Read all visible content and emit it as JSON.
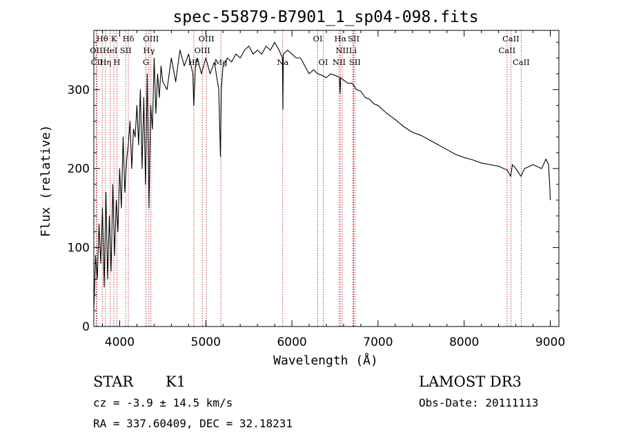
{
  "chart_data": {
    "type": "line",
    "title": "spec-55879-B7901_1_sp04-098.fits",
    "xlabel": "Wavelength (Å)",
    "ylabel": "Flux (relative)",
    "xlim": [
      3700,
      9100
    ],
    "ylim": [
      0,
      375
    ],
    "xticks": [
      4000,
      5000,
      6000,
      7000,
      8000,
      9000
    ],
    "yticks": [
      0,
      100,
      200,
      300
    ],
    "series": [
      {
        "name": "flux",
        "x": [
          3700,
          3720,
          3740,
          3760,
          3780,
          3800,
          3820,
          3840,
          3860,
          3880,
          3900,
          3920,
          3940,
          3960,
          3980,
          4000,
          4020,
          4040,
          4060,
          4080,
          4100,
          4120,
          4140,
          4160,
          4180,
          4200,
          4220,
          4240,
          4260,
          4280,
          4300,
          4320,
          4340,
          4360,
          4380,
          4400,
          4420,
          4440,
          4460,
          4480,
          4500,
          4550,
          4600,
          4650,
          4700,
          4750,
          4800,
          4850,
          4860,
          4880,
          4900,
          4950,
          5000,
          5050,
          5100,
          5150,
          5170,
          5180,
          5200,
          5250,
          5300,
          5350,
          5400,
          5450,
          5500,
          5550,
          5600,
          5650,
          5700,
          5750,
          5800,
          5850,
          5890,
          5895,
          5900,
          5950,
          6000,
          6050,
          6100,
          6150,
          6200,
          6250,
          6300,
          6350,
          6400,
          6450,
          6500,
          6550,
          6560,
          6565,
          6600,
          6650,
          6700,
          6750,
          6800,
          6850,
          6900,
          6950,
          7000,
          7100,
          7200,
          7300,
          7400,
          7500,
          7600,
          7700,
          7800,
          7900,
          8000,
          8100,
          8200,
          8300,
          8400,
          8500,
          8540,
          8560,
          8600,
          8660,
          8700,
          8800,
          8900,
          8950,
          8980,
          8995,
          9000
        ],
        "values": [
          20,
          90,
          60,
          130,
          80,
          150,
          50,
          170,
          60,
          140,
          70,
          180,
          90,
          160,
          120,
          200,
          150,
          240,
          170,
          210,
          230,
          260,
          200,
          250,
          240,
          280,
          230,
          300,
          200,
          290,
          180,
          320,
          150,
          280,
          250,
          340,
          270,
          320,
          290,
          330,
          310,
          300,
          340,
          310,
          350,
          330,
          345,
          320,
          280,
          330,
          340,
          320,
          340,
          320,
          335,
          300,
          215,
          300,
          330,
          340,
          335,
          345,
          340,
          350,
          355,
          345,
          350,
          345,
          355,
          350,
          360,
          350,
          340,
          275,
          345,
          350,
          345,
          340,
          340,
          330,
          320,
          325,
          320,
          318,
          315,
          320,
          318,
          316,
          295,
          315,
          312,
          308,
          308,
          300,
          298,
          290,
          288,
          282,
          280,
          270,
          262,
          253,
          246,
          242,
          236,
          230,
          224,
          218,
          214,
          211,
          207,
          205,
          203,
          198,
          190,
          205,
          200,
          190,
          200,
          205,
          200,
          212,
          205,
          175,
          160
        ]
      }
    ],
    "spectral_lines": [
      {
        "name": "Hθ",
        "wl": 3798,
        "row": 0
      },
      {
        "name": "K",
        "wl": 3933,
        "row": 0
      },
      {
        "name": "Hδ",
        "wl": 4101,
        "row": 0
      },
      {
        "name": "OIII",
        "wl": 4363,
        "row": 0
      },
      {
        "name": "OIII",
        "wl": 5007,
        "row": 0
      },
      {
        "name": "OI",
        "wl": 6300,
        "row": 0
      },
      {
        "name": "Hα",
        "wl": 6563,
        "row": 0
      },
      {
        "name": "SII",
        "wl": 6717,
        "row": 0
      },
      {
        "name": "CaII",
        "wl": 8542,
        "row": 0
      },
      {
        "name": "OII",
        "wl": 3727,
        "row": 1
      },
      {
        "name": "HeI",
        "wl": 3889,
        "row": 1
      },
      {
        "name": "SII",
        "wl": 4070,
        "row": 1
      },
      {
        "name": "Hγ",
        "wl": 4340,
        "row": 1
      },
      {
        "name": "OIII",
        "wl": 4959,
        "row": 1
      },
      {
        "name": "NII",
        "wl": 6584,
        "row": 1
      },
      {
        "name": "Li",
        "wl": 6708,
        "row": 1
      },
      {
        "name": "CaII",
        "wl": 8498,
        "row": 1
      },
      {
        "name": "CII",
        "wl": 3737,
        "row": 2
      },
      {
        "name": "Hη",
        "wl": 3835,
        "row": 2
      },
      {
        "name": "H",
        "wl": 3968,
        "row": 2
      },
      {
        "name": "G",
        "wl": 4305,
        "row": 2
      },
      {
        "name": "Hβ",
        "wl": 4861,
        "row": 2
      },
      {
        "name": "Mg",
        "wl": 5175,
        "row": 2
      },
      {
        "name": "Na",
        "wl": 5893,
        "row": 2
      },
      {
        "name": "OI",
        "wl": 6364,
        "row": 2
      },
      {
        "name": "NII",
        "wl": 6548,
        "row": 2
      },
      {
        "name": "SII",
        "wl": 6731,
        "row": 2
      },
      {
        "name": "CaII",
        "wl": 8662,
        "row": 2
      }
    ],
    "grid": false,
    "line_color": "#000000",
    "marker_color": "#b22222"
  },
  "info": {
    "object_class": "STAR",
    "subclass": "K1",
    "survey": "LAMOST DR3",
    "redshift": "cz = -3.9 ± 14.5 km/s",
    "obs_date": "Obs-Date: 20111113",
    "coords": "RA = 337.60409, DEC =  32.18231"
  }
}
